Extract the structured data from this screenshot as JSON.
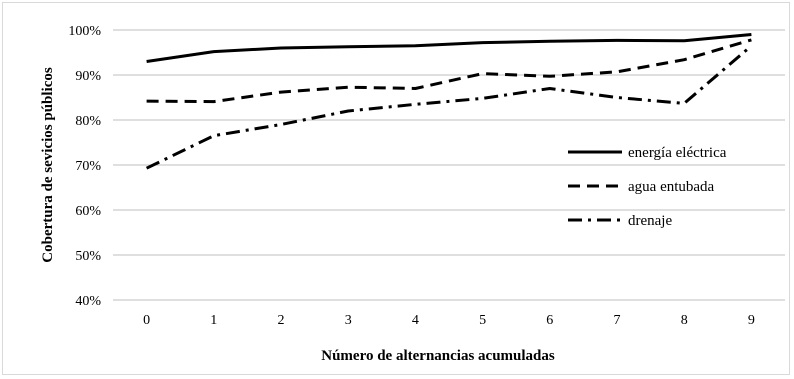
{
  "chart_data": {
    "type": "line",
    "title": "",
    "xlabel": "Número de alternancias acumuladas",
    "ylabel": "Cobertura de sevicios públicos",
    "categories": [
      "0",
      "1",
      "2",
      "3",
      "4",
      "5",
      "6",
      "7",
      "8",
      "9"
    ],
    "ylim": [
      0.4,
      1.0
    ],
    "yticks": [
      "40%",
      "50%",
      "60%",
      "70%",
      "80%",
      "90%",
      "100%"
    ],
    "grid": "horizontal",
    "legend_position": "right",
    "series": [
      {
        "name": "energía eléctrica",
        "style": "solid",
        "color": "#000000",
        "values": [
          0.93,
          0.952,
          0.96,
          0.963,
          0.965,
          0.972,
          0.975,
          0.977,
          0.976,
          0.99
        ]
      },
      {
        "name": "agua entubada",
        "style": "dashed",
        "color": "#000000",
        "values": [
          0.842,
          0.841,
          0.862,
          0.873,
          0.87,
          0.903,
          0.897,
          0.907,
          0.934,
          0.978
        ]
      },
      {
        "name": "drenaje",
        "style": "dash-dot",
        "color": "#000000",
        "values": [
          0.693,
          0.765,
          0.79,
          0.82,
          0.835,
          0.848,
          0.87,
          0.85,
          0.837,
          0.965
        ]
      }
    ]
  }
}
